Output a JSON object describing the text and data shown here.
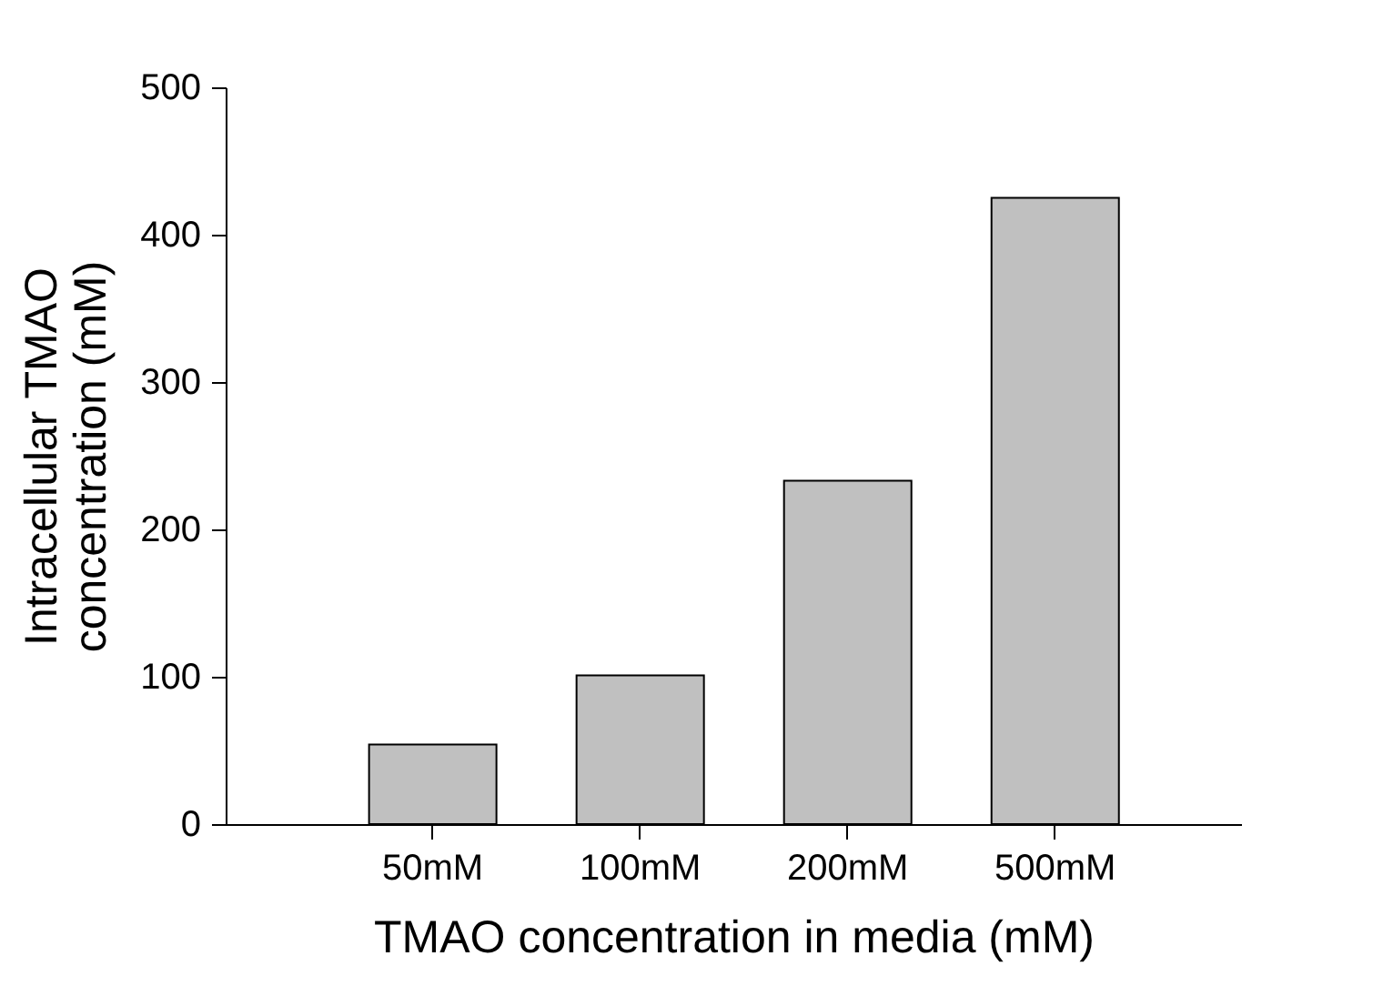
{
  "chart_data": {
    "type": "bar",
    "xlabel": "TMAO concentration in media (mM)",
    "ylabel": "Intracellular TMAO\nconcentration (mM)",
    "categories": [
      "50mM",
      "100mM",
      "200mM",
      "500mM"
    ],
    "values": [
      54,
      101,
      233,
      425
    ],
    "color": "#c0c0c0",
    "ylim": [
      0,
      500
    ],
    "yticks": [
      0,
      100,
      200,
      300,
      400,
      500
    ],
    "grid": false
  }
}
